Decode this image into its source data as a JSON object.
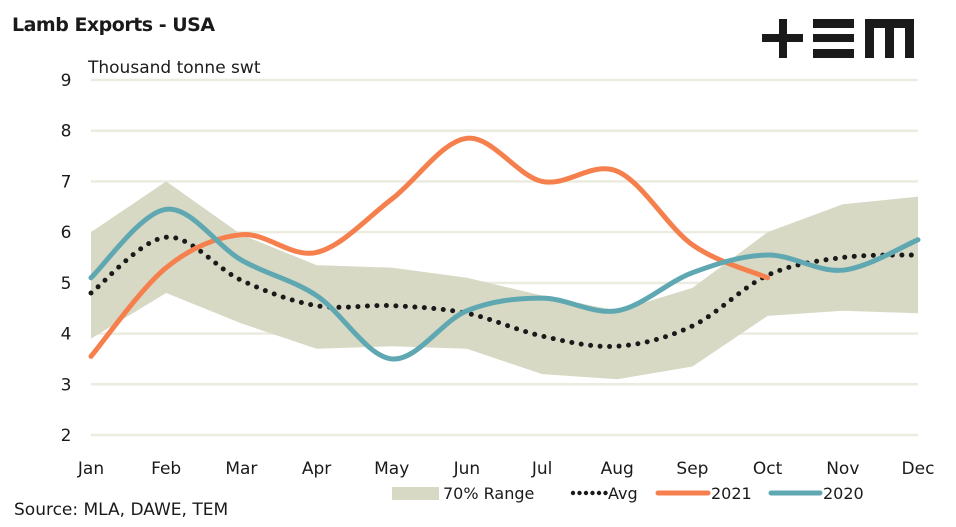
{
  "header": {
    "title": "Lamb Exports - USA",
    "logo": "TEM logo (+≡m)"
  },
  "footer": {
    "source": "Source: MLA, DAWE, TEM"
  },
  "chart_data": {
    "type": "line",
    "title": "Lamb Exports - USA",
    "ylabel": "Thousand tonne swt",
    "xlabel": "",
    "categories": [
      "Jan",
      "Feb",
      "Mar",
      "Apr",
      "May",
      "Jun",
      "Jul",
      "Aug",
      "Sep",
      "Oct",
      "Nov",
      "Dec"
    ],
    "yticks": [
      2,
      3,
      4,
      5,
      6,
      7,
      8,
      9
    ],
    "ylim": [
      2,
      9
    ],
    "grid": true,
    "legend_position": "bottom-right",
    "range": {
      "name": "70% Range",
      "color": "#d8d9c4",
      "upper": [
        6.0,
        7.0,
        5.95,
        5.35,
        5.3,
        5.1,
        4.75,
        4.45,
        4.9,
        6.0,
        6.55,
        6.7
      ],
      "lower": [
        3.9,
        4.8,
        4.2,
        3.7,
        3.75,
        3.7,
        3.2,
        3.1,
        3.35,
        4.35,
        4.45,
        4.4
      ]
    },
    "series": [
      {
        "name": "Avg",
        "style": "dotted",
        "color": "#1a1a1a",
        "values": [
          4.8,
          5.9,
          5.05,
          4.55,
          4.55,
          4.4,
          3.95,
          3.75,
          4.15,
          5.15,
          5.5,
          5.55
        ]
      },
      {
        "name": "2021",
        "style": "solid",
        "color": "#f5804d",
        "values": [
          3.55,
          5.3,
          5.95,
          5.6,
          6.65,
          7.85,
          7.0,
          7.2,
          5.75,
          5.1,
          null,
          null
        ]
      },
      {
        "name": "2020",
        "style": "solid",
        "color": "#5fa8b2",
        "values": [
          5.1,
          6.45,
          5.45,
          4.75,
          3.5,
          4.45,
          4.7,
          4.45,
          5.2,
          5.55,
          5.25,
          5.85
        ]
      }
    ],
    "legend": [
      "70% Range",
      "Avg",
      "2021",
      "2020"
    ]
  }
}
